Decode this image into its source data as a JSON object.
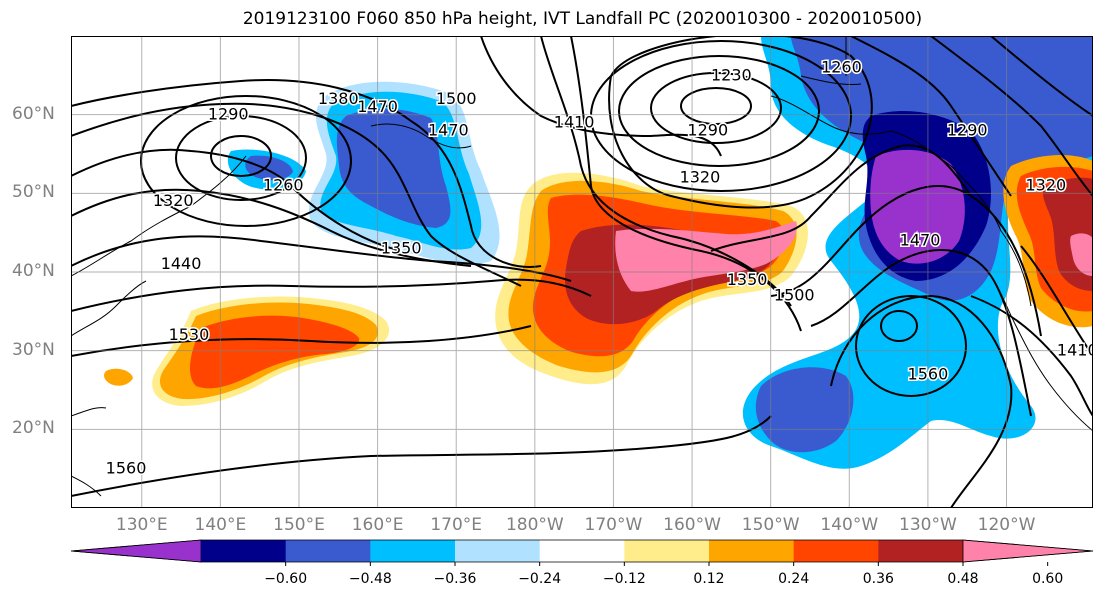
{
  "title": "2019123100 F060 850 hPa height, IVT Landfall PC (2020010300 - 2020010500)",
  "map": {
    "lon_labels": [
      {
        "lon": 130,
        "text": "130°E"
      },
      {
        "lon": 140,
        "text": "140°E"
      },
      {
        "lon": 150,
        "text": "150°E"
      },
      {
        "lon": 160,
        "text": "160°E"
      },
      {
        "lon": 170,
        "text": "170°E"
      },
      {
        "lon": 180,
        "text": "180°W"
      },
      {
        "lon": 190,
        "text": "170°W"
      },
      {
        "lon": 200,
        "text": "160°W"
      },
      {
        "lon": 210,
        "text": "150°W"
      },
      {
        "lon": 220,
        "text": "140°W"
      },
      {
        "lon": 230,
        "text": "130°W"
      },
      {
        "lon": 240,
        "text": "120°W"
      }
    ],
    "lat_labels": [
      {
        "lat": 20,
        "text": "20°N"
      },
      {
        "lat": 30,
        "text": "30°N"
      },
      {
        "lat": 40,
        "text": "40°N"
      },
      {
        "lat": 50,
        "text": "50°N"
      },
      {
        "lat": 60,
        "text": "60°N"
      }
    ],
    "lon_range": [
      121,
      251
    ],
    "lat_range": [
      10,
      70
    ],
    "grid": true,
    "height_contour_labels": [
      {
        "text": "1290",
        "lon": 141,
        "lat": 60
      },
      {
        "text": "1380",
        "lon": 155,
        "lat": 62
      },
      {
        "text": "1470",
        "lon": 160,
        "lat": 61
      },
      {
        "text": "1500",
        "lon": 170,
        "lat": 62
      },
      {
        "text": "1470",
        "lon": 169,
        "lat": 58
      },
      {
        "text": "1260",
        "lon": 148,
        "lat": 51
      },
      {
        "text": "1320",
        "lon": 134,
        "lat": 49
      },
      {
        "text": "1350",
        "lon": 163,
        "lat": 43
      },
      {
        "text": "1440",
        "lon": 135,
        "lat": 41
      },
      {
        "text": "1530",
        "lon": 136,
        "lat": 32
      },
      {
        "text": "1560",
        "lon": 128,
        "lat": 15
      },
      {
        "text": "1410",
        "lon": 185,
        "lat": 59
      },
      {
        "text": "1230",
        "lon": 205,
        "lat": 65
      },
      {
        "text": "1290",
        "lon": 202,
        "lat": 58
      },
      {
        "text": "1320",
        "lon": 201,
        "lat": 52
      },
      {
        "text": "1350",
        "lon": 207,
        "lat": 39
      },
      {
        "text": "1500",
        "lon": 213,
        "lat": 37
      },
      {
        "text": "1260",
        "lon": 219,
        "lat": 66
      },
      {
        "text": "1290",
        "lon": 235,
        "lat": 58
      },
      {
        "text": "1470",
        "lon": 229,
        "lat": 44
      },
      {
        "text": "1560",
        "lon": 230,
        "lat": 27
      },
      {
        "text": "1320",
        "lon": 245,
        "lat": 51
      },
      {
        "text": "1410",
        "lon": 249,
        "lat": 30
      }
    ]
  },
  "colorbar": {
    "colors": [
      "#9932cc",
      "#00008b",
      "#3a5bcf",
      "#00bfff",
      "#b0e2ff",
      "#ffffff",
      "#ffec8b",
      "#ffa500",
      "#ff4500",
      "#b22222",
      "#ff82ab"
    ],
    "tick_labels": [
      "−0.60",
      "−0.48",
      "−0.36",
      "−0.24",
      "−0.12",
      "0.12",
      "0.24",
      "0.36",
      "0.48",
      "0.60"
    ]
  }
}
